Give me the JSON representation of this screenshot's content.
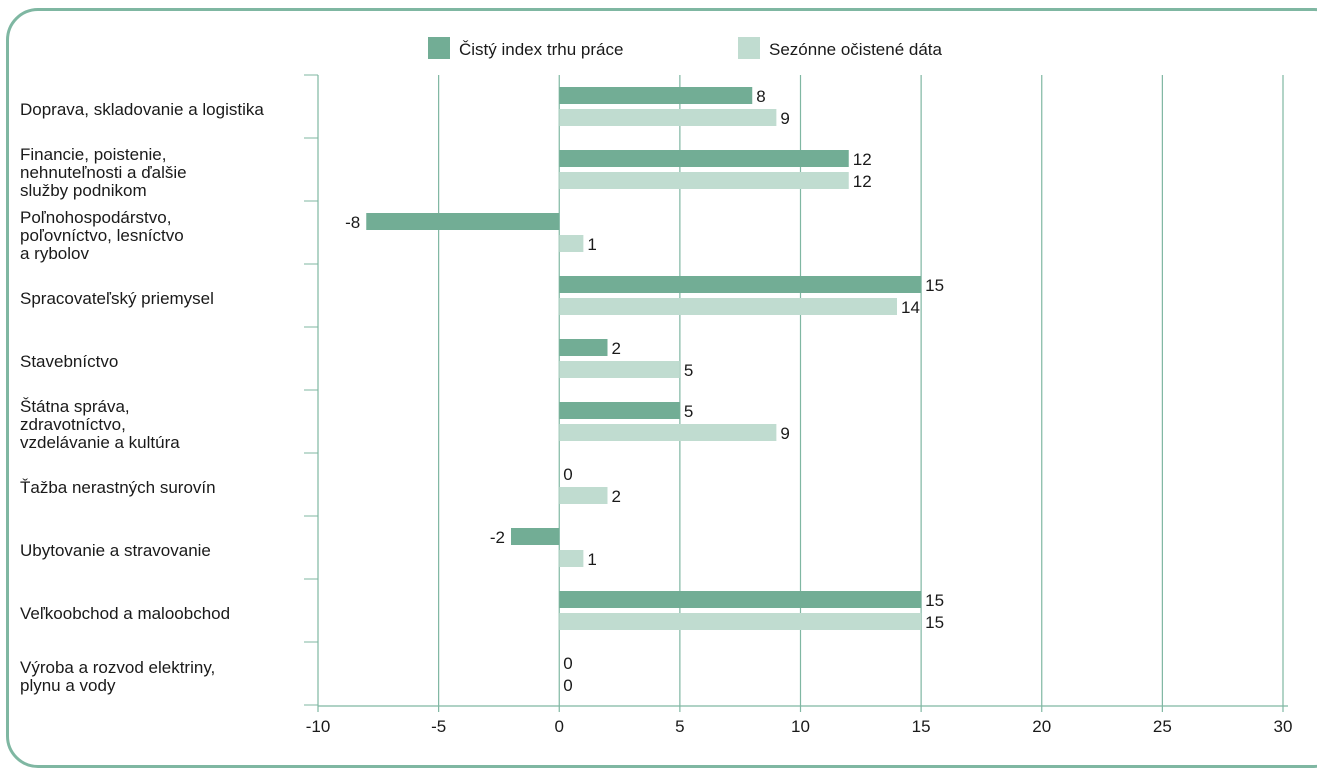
{
  "chart_data": {
    "type": "bar",
    "orientation": "horizontal",
    "categories": [
      [
        "Doprava, skladovanie a logistika"
      ],
      [
        "Financie, poistenie,",
        "nehnuteľnosti a ďalšie",
        "služby podnikom"
      ],
      [
        "Poľnohospodárstvo,",
        "poľovníctvo, lesníctvo",
        "a rybolov"
      ],
      [
        "Spracovateľský priemysel"
      ],
      [
        "Stavebníctvo"
      ],
      [
        "Štátna správa,",
        "zdravotníctvo,",
        "vzdelávanie a kultúra"
      ],
      [
        "Ťažba nerastných surovín"
      ],
      [
        "Ubytovanie a stravovanie"
      ],
      [
        "Veľkoobchod a maloobchod"
      ],
      [
        "Výroba a rozvod elektriny,",
        "plynu a vody"
      ]
    ],
    "series": [
      {
        "name": "Čistý index trhu práce",
        "color": "#72ad95",
        "values": [
          8,
          12,
          -8,
          15,
          2,
          5,
          0,
          -2,
          15,
          0
        ]
      },
      {
        "name": "Sezónne očistené dáta",
        "color": "#c0dcd0",
        "values": [
          9,
          12,
          1,
          14,
          5,
          9,
          2,
          1,
          15,
          0
        ]
      }
    ],
    "xlim": [
      -10,
      30
    ],
    "xticks": [
      -10,
      -5,
      0,
      5,
      10,
      15,
      20,
      25,
      30
    ],
    "grid": true,
    "legend_position": "top"
  },
  "colors": {
    "frame": "#7fb7a2",
    "grid": "#7fb7a2",
    "text": "#1a1a1a"
  }
}
